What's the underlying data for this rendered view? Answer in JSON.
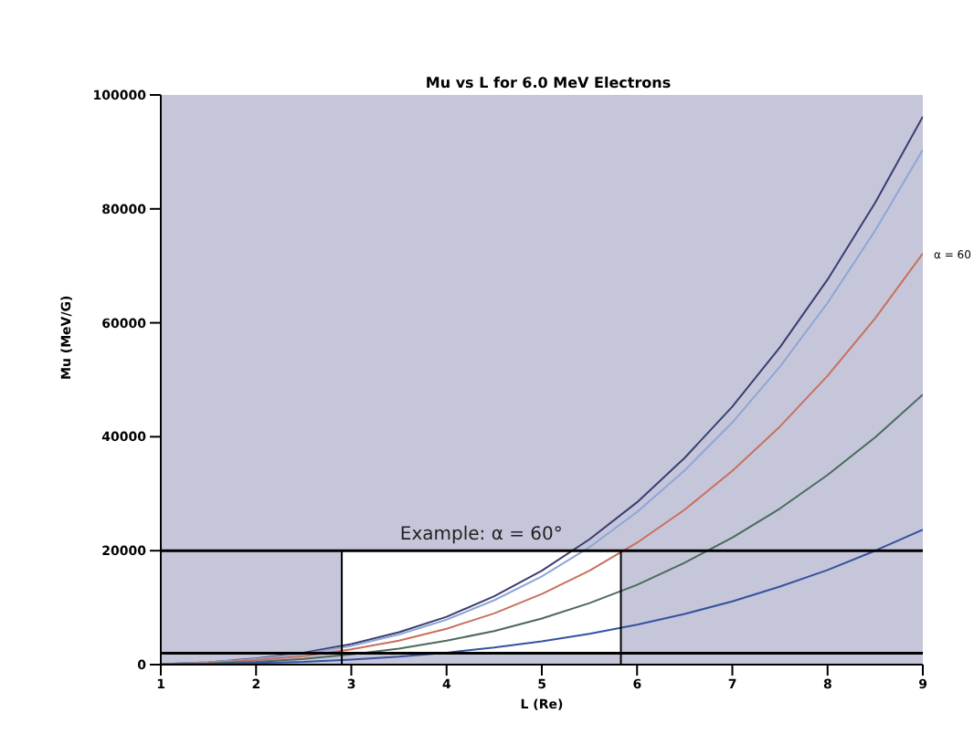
{
  "chart_data": {
    "type": "line",
    "title": "Mu vs L for 6.0 MeV Electrons",
    "xlabel": "L (Re)",
    "ylabel": "Mu (MeV/G)",
    "x": [
      1,
      1.5,
      2,
      2.5,
      3,
      3.5,
      4,
      4.5,
      5,
      5.5,
      6,
      6.5,
      7,
      7.5,
      8,
      8.5,
      9
    ],
    "series": [
      {
        "color": "#3c3c70",
        "values": [
          100,
          400,
          1100,
          2100,
          3600,
          5700,
          8400,
          12000,
          16500,
          22000,
          28500,
          36300,
          45300,
          55700,
          67600,
          81100,
          96200
        ]
      },
      {
        "color": "#8ea6d6",
        "values": [
          100,
          400,
          1000,
          1900,
          3300,
          5300,
          7900,
          11300,
          15500,
          20600,
          26800,
          34100,
          42500,
          52300,
          63500,
          76200,
          90400
        ]
      },
      {
        "color": "#c8705c",
        "values": [
          100,
          300,
          800,
          1500,
          2700,
          4200,
          6300,
          9000,
          12400,
          16500,
          21400,
          27200,
          34000,
          41800,
          50700,
          60800,
          72200
        ]
      },
      {
        "color": "#4a6a5c",
        "values": [
          100,
          200,
          500,
          1000,
          1800,
          2800,
          4200,
          5900,
          8100,
          10800,
          14000,
          17900,
          22300,
          27400,
          33300,
          39900,
          47400
        ]
      },
      {
        "color": "#3452a0",
        "values": [
          0,
          100,
          300,
          500,
          900,
          1400,
          2100,
          3000,
          4100,
          5400,
          7000,
          8900,
          11100,
          13700,
          16600,
          20000,
          23700
        ]
      }
    ],
    "xlim": [
      1,
      9
    ],
    "xticks": [
      1,
      2,
      3,
      4,
      5,
      6,
      7,
      8,
      9
    ],
    "ylim": [
      0,
      100000
    ],
    "yticks": [
      0,
      20000,
      40000,
      60000,
      80000,
      100000
    ],
    "ref_lines": [
      {
        "axis": "y",
        "value": 20000,
        "color": "#000000"
      },
      {
        "axis": "y",
        "value": 2000,
        "color": "#000000"
      },
      {
        "axis": "x",
        "value": 2.9,
        "color": "#000000"
      },
      {
        "axis": "x",
        "value": 5.83,
        "color": "#000000"
      }
    ],
    "bands": [
      {
        "axis": "x",
        "from": 2.9,
        "to": 5.83,
        "color": "#ffffff"
      }
    ],
    "annotations": [
      "Example: α = 60°",
      {
        "text": "α = 60",
        "x": 9,
        "y": 72000
      }
    ],
    "grid": false,
    "marker": "none",
    "line_style": "solid"
  }
}
